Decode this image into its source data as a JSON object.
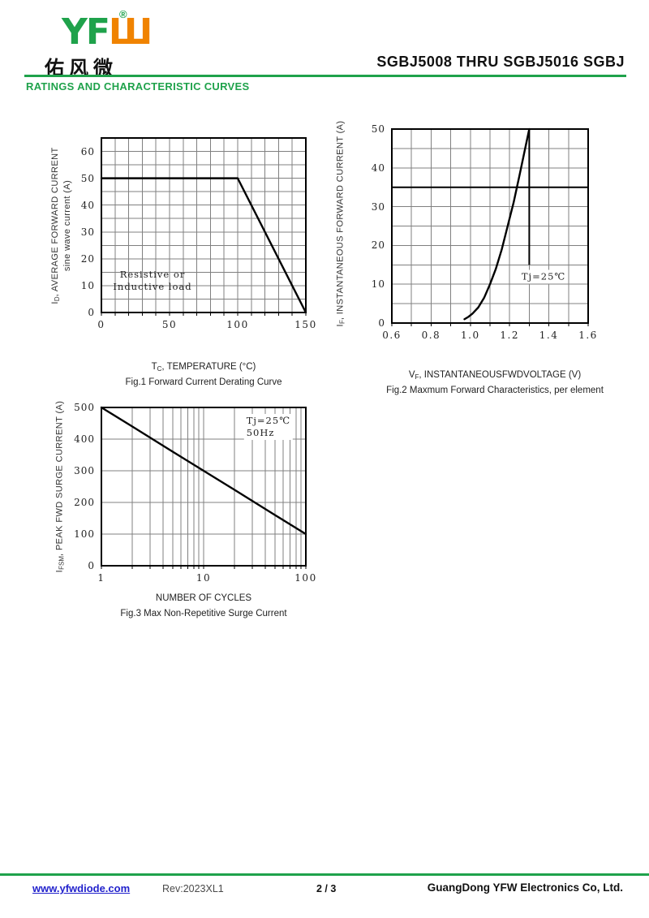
{
  "header": {
    "logo_green": "YF",
    "logo_orange": "Ш",
    "logo_reg": "®",
    "logo_cjk": "佑风微",
    "part_title": "SGBJ5008 THRU SGBJ5016  SGBJ",
    "section_title": "RATINGS AND CHARACTERISTIC CURVES"
  },
  "footer": {
    "url": "www.yfwdiode.com",
    "rev": "Rev:2023XL1",
    "page": "2 / 3",
    "company": "GuangDong YFW Electronics Co, Ltd."
  },
  "colors": {
    "brand_green": "#1fa24b",
    "brand_orange": "#f08300",
    "link_blue": "#2222cc",
    "grid_gray": "#808080",
    "curve_black": "#000000"
  },
  "chart_data": [
    {
      "type": "line",
      "title": "Fig.1 Forward Current Derating Curve",
      "xlabel": {
        "pre": "T",
        "sub": "C",
        "post": ", TEMPERATURE (°C)"
      },
      "ylabel": {
        "pre": "I",
        "sub": "D",
        "post": ", AVERAGE FORWARD CURRENT",
        "line2": "sine wave current  (A)"
      },
      "x": {
        "min": 0,
        "max": 150,
        "minor_step": 10,
        "log": false,
        "ticks": [
          {
            "v": 0,
            "l": "0"
          },
          {
            "v": 50,
            "l": "50"
          },
          {
            "v": 100,
            "l": "100"
          },
          {
            "v": 150,
            "l": "150"
          }
        ]
      },
      "y": {
        "min": 0,
        "max": 65,
        "minor_step": 5,
        "ticks": [
          {
            "v": 0,
            "l": "0"
          },
          {
            "v": 10,
            "l": "10"
          },
          {
            "v": 20,
            "l": "20"
          },
          {
            "v": 30,
            "l": "30"
          },
          {
            "v": 40,
            "l": "40"
          },
          {
            "v": 50,
            "l": "50"
          },
          {
            "v": 60,
            "l": "60"
          }
        ]
      },
      "series": [
        {
          "name": "derating-curve",
          "points": [
            [
              0,
              50
            ],
            [
              100,
              50
            ],
            [
              150,
              0
            ]
          ]
        }
      ],
      "extra_lines": [],
      "annotations": [
        {
          "lines": [
            "Resistive or",
            "Inductive load"
          ],
          "cx": 0.25,
          "cy": 0.82,
          "bg": "transparent",
          "align": "center"
        }
      ]
    },
    {
      "type": "line",
      "title": "Fig.2 Maxmum Forward Characteristics, per element",
      "xlabel": {
        "pre": "V",
        "sub": "F",
        "post": ", INSTANTANEOUSFWDVOLTAGE (V)"
      },
      "ylabel": {
        "pre": "I",
        "sub": "F",
        "post": ", INSTANTANEOUS FORWARD CURRENT (A)",
        "line2": ""
      },
      "x": {
        "min": 0.6,
        "max": 1.6,
        "minor_step": 0.1,
        "log": false,
        "ticks": [
          {
            "v": 0.6,
            "l": "0.6"
          },
          {
            "v": 0.8,
            "l": "0.8"
          },
          {
            "v": 1.0,
            "l": "1.0"
          },
          {
            "v": 1.2,
            "l": "1.2"
          },
          {
            "v": 1.4,
            "l": "1.4"
          },
          {
            "v": 1.6,
            "l": "1.6"
          }
        ]
      },
      "y": {
        "min": 0,
        "max": 50,
        "minor_step": 5,
        "ticks": [
          {
            "v": 0,
            "l": "0"
          },
          {
            "v": 10,
            "l": "10"
          },
          {
            "v": 20,
            "l": "20"
          },
          {
            "v": 30,
            "l": "30"
          },
          {
            "v": 40,
            "l": "40"
          },
          {
            "v": 50,
            "l": "50"
          }
        ]
      },
      "series": [
        {
          "name": "vf-if-curve",
          "points": [
            [
              0.97,
              1
            ],
            [
              0.99,
              1.6
            ],
            [
              1.01,
              2.4
            ],
            [
              1.04,
              4
            ],
            [
              1.07,
              6.5
            ],
            [
              1.1,
              10
            ],
            [
              1.13,
              14
            ],
            [
              1.16,
              19
            ],
            [
              1.19,
              25
            ],
            [
              1.22,
              31
            ],
            [
              1.25,
              38
            ],
            [
              1.275,
              44
            ],
            [
              1.3,
              50
            ]
          ]
        }
      ],
      "extra_lines": [
        {
          "o": "h",
          "at": 35,
          "from": 0.6,
          "to": 1.6,
          "w": 2
        },
        {
          "o": "v",
          "at": 1.3,
          "from": 15,
          "to": 50,
          "w": 2
        }
      ],
      "annotations": [
        {
          "lines": [
            "Tj=25℃"
          ],
          "cx": 0.773,
          "cy": 0.762,
          "bg": "#ffffff",
          "align": "center"
        }
      ]
    },
    {
      "type": "line",
      "title": "Fig.3 Max Non-Repetitive Surge Current",
      "xlabel": {
        "pre": "",
        "sub": "",
        "post": "NUMBER OF CYCLES"
      },
      "ylabel": {
        "pre": "I",
        "sub": "FSM",
        "post": ", PEAK FWD SURGE CURRENT (A)",
        "line2": ""
      },
      "x": {
        "min": 1,
        "max": 100,
        "minor_step": 0,
        "log": true,
        "ticks": [
          {
            "v": 1,
            "l": "1"
          },
          {
            "v": 10,
            "l": "10"
          },
          {
            "v": 100,
            "l": "100"
          }
        ]
      },
      "y": {
        "min": 0,
        "max": 500,
        "minor_step": 100,
        "ticks": [
          {
            "v": 0,
            "l": "0"
          },
          {
            "v": 100,
            "l": "100"
          },
          {
            "v": 200,
            "l": "200"
          },
          {
            "v": 300,
            "l": "300"
          },
          {
            "v": 400,
            "l": "400"
          },
          {
            "v": 500,
            "l": "500"
          }
        ]
      },
      "series": [
        {
          "name": "surge-curve",
          "points": [
            [
              1,
              500
            ],
            [
              2,
              440
            ],
            [
              5,
              360
            ],
            [
              10,
              300
            ],
            [
              20,
              240
            ],
            [
              50,
              160
            ],
            [
              100,
              100
            ]
          ]
        }
      ],
      "extra_lines": [],
      "annotations": [
        {
          "lines": [
            "Tj=25℃",
            "50Hz"
          ],
          "cx": 0.817,
          "cy": 0.125,
          "bg": "#ffffff",
          "align": "left"
        }
      ]
    }
  ]
}
